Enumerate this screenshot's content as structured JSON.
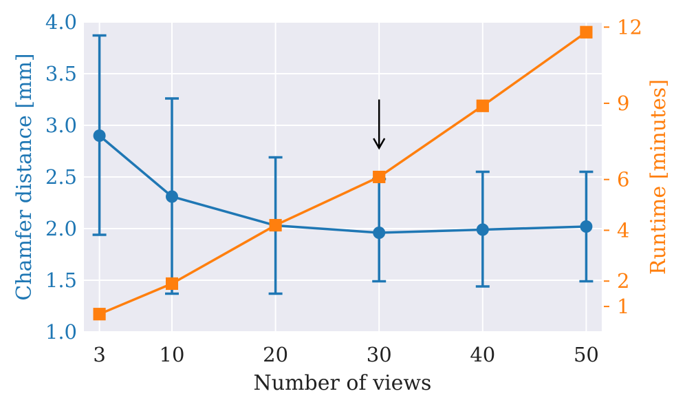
{
  "chart_data": {
    "type": "line",
    "x": [
      3,
      10,
      20,
      30,
      40,
      50
    ],
    "xlabel": "Number of views",
    "xticks": [
      "3",
      "10",
      "20",
      "30",
      "40",
      "50"
    ],
    "xlim": [
      1.5,
      51.5
    ],
    "series": [
      {
        "axis": "left",
        "marker": "circle",
        "color": "#1f77b4",
        "values": [
          2.9,
          2.31,
          2.03,
          1.96,
          1.99,
          2.02
        ],
        "error_low": [
          1.94,
          1.37,
          1.37,
          1.49,
          1.44,
          1.49
        ],
        "error_high": [
          3.87,
          3.26,
          2.69,
          2.48,
          2.55,
          2.55
        ]
      },
      {
        "axis": "right",
        "marker": "square",
        "color": "#ff7f0e",
        "values": [
          0.7,
          1.9,
          4.2,
          6.1,
          8.9,
          11.8
        ]
      }
    ],
    "y_left": {
      "label": "Chamfer distance [mm]",
      "ylim": [
        1.0,
        4.0
      ],
      "ticks": [
        "1.0",
        "1.5",
        "2.0",
        "2.5",
        "3.0",
        "3.5",
        "4.0"
      ],
      "color": "#1f77b4"
    },
    "y_right": {
      "label": "Runtime [minutes]",
      "ylim": [
        0,
        12.2
      ],
      "ticks": [
        1,
        2,
        4,
        6,
        9,
        12
      ],
      "color": "#ff7f0e"
    },
    "annotation": {
      "type": "arrow",
      "direction": "down",
      "x": 30,
      "y_top": 3.25,
      "y_tip": 2.78,
      "color": "#000000"
    },
    "grid": true,
    "background": "#eaeaf2"
  }
}
